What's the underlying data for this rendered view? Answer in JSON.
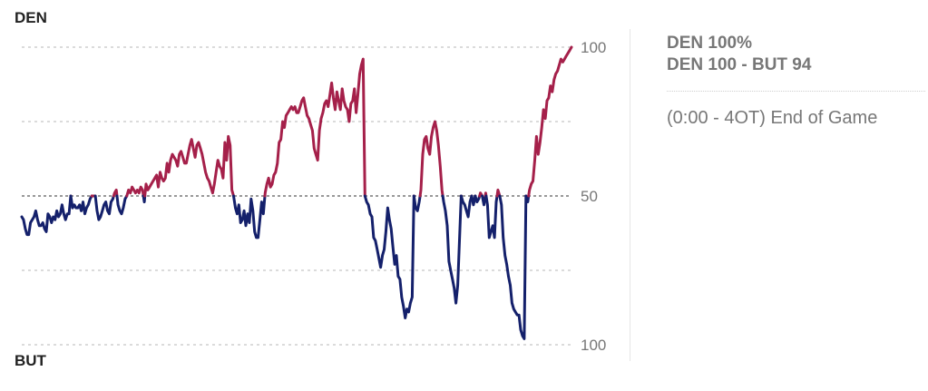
{
  "teams": {
    "top": "DEN",
    "bottom": "BUT"
  },
  "info": {
    "probability": "DEN 100%",
    "score": "DEN 100  - BUT 94",
    "status": "(0:00 - 4OT) End of Game"
  },
  "colors": {
    "top": "#a5204a",
    "bottom": "#14206b",
    "grid": "#cfcfcf",
    "midline": "#999999"
  },
  "chart_data": {
    "type": "line",
    "title": "",
    "xlabel": "",
    "ylabel": "",
    "y_ticks": [
      {
        "value": 100,
        "label": "100"
      },
      {
        "value": 50,
        "label": "50"
      },
      {
        "value": 0,
        "label": "100"
      }
    ],
    "gridlines": [
      100,
      75,
      50,
      25,
      0
    ],
    "ylim": [
      0,
      100
    ],
    "series": [
      {
        "values": [
          43,
          42,
          39,
          37,
          37,
          41,
          42,
          43,
          45,
          42,
          40,
          40,
          41,
          39,
          38,
          44,
          43,
          41,
          43,
          42,
          45,
          43,
          44,
          47,
          44,
          42,
          44,
          44,
          50,
          46,
          47,
          46,
          46,
          47,
          45,
          48,
          44,
          46,
          47,
          49,
          50,
          50,
          50,
          45,
          42,
          43,
          45,
          47,
          48,
          45,
          44,
          48,
          49,
          51,
          52,
          47,
          45,
          44,
          46,
          49,
          50,
          52,
          51,
          53,
          52,
          51,
          52,
          51,
          53,
          52,
          48,
          54,
          52,
          53,
          54,
          55,
          56,
          57,
          53,
          58,
          56,
          55,
          56,
          61,
          58,
          62,
          64,
          63,
          62,
          60,
          64,
          65,
          63,
          61,
          61,
          64,
          67,
          69,
          66,
          63,
          67,
          68,
          66,
          64,
          61,
          58,
          56,
          55,
          53,
          51,
          54,
          58,
          62,
          60,
          59,
          56,
          68,
          62,
          70,
          67,
          52,
          50,
          46,
          44,
          47,
          41,
          42,
          45,
          40,
          44,
          41,
          49,
          45,
          38,
          36,
          36,
          42,
          48,
          44,
          51,
          54,
          56,
          53,
          54,
          57,
          58,
          61,
          68,
          69,
          75,
          73,
          77,
          78,
          79,
          80,
          79,
          80,
          78,
          78,
          80,
          82,
          83,
          80,
          77,
          76,
          74,
          72,
          66,
          64,
          62,
          72,
          76,
          78,
          81,
          82,
          80,
          84,
          88,
          83,
          79,
          85,
          82,
          79,
          86,
          82,
          80,
          79,
          75,
          81,
          82,
          86,
          78,
          84,
          91,
          94,
          96,
          50,
          48,
          47,
          44,
          43,
          36,
          35,
          32,
          29,
          26,
          30,
          32,
          38,
          46,
          42,
          39,
          33,
          27,
          30,
          23,
          22,
          16,
          13,
          9,
          12,
          11,
          14,
          16,
          50,
          46,
          45,
          48,
          52,
          64,
          69,
          70,
          66,
          64,
          70,
          73,
          75,
          72,
          67,
          60,
          52,
          48,
          45,
          40,
          28,
          25,
          22,
          19,
          14,
          20,
          35,
          50,
          48,
          47,
          45,
          43,
          48,
          50,
          47,
          50,
          48,
          49,
          51,
          50,
          47,
          51,
          47,
          36,
          38,
          40,
          36,
          48,
          52,
          50,
          47,
          36,
          30,
          27,
          23,
          20,
          14,
          12,
          11,
          10,
          10,
          5,
          3,
          2,
          50,
          48,
          52,
          54,
          55,
          62,
          70,
          64,
          68,
          73,
          79,
          76,
          82,
          83,
          87,
          85,
          89,
          91,
          92,
          94,
          96,
          95,
          96,
          97,
          98,
          99,
          100
        ]
      }
    ]
  }
}
